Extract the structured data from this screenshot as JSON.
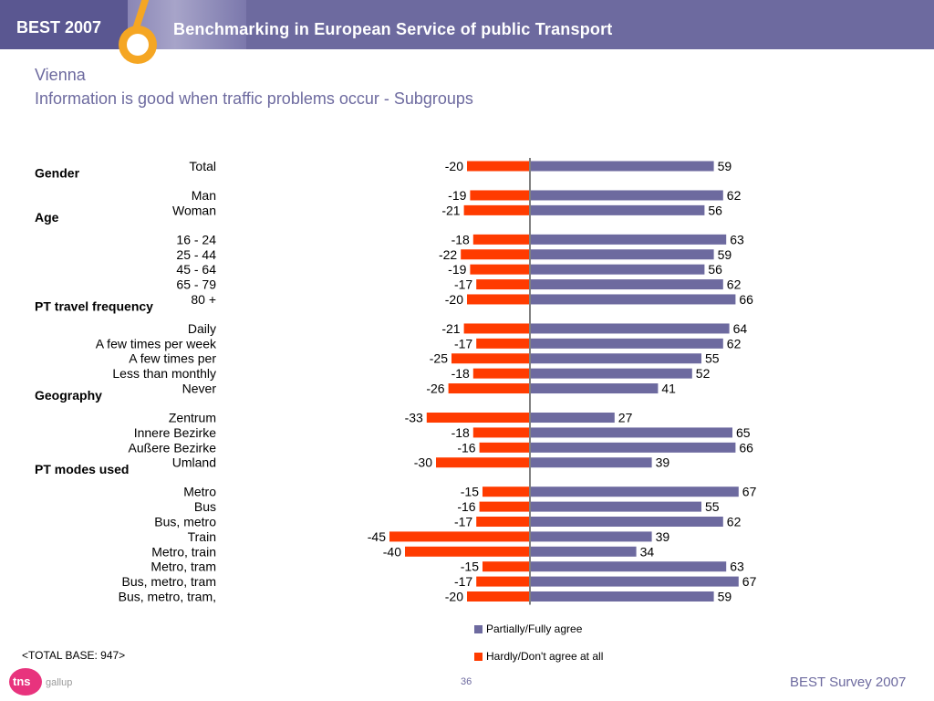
{
  "header": {
    "brand": "BEST 2007",
    "subtitle": "Benchmarking in European Service of public Transport"
  },
  "slide": {
    "title": "Vienna",
    "subtitle": "Information is good when traffic problems occur - Subgroups"
  },
  "chart_data": {
    "type": "bar",
    "orientation": "horizontal diverging",
    "groups": [
      {
        "name": "",
        "rows": [
          {
            "label": "Total",
            "negative": -20,
            "positive": 59
          }
        ]
      },
      {
        "name": "Gender",
        "rows": [
          {
            "label": "Man",
            "negative": -19,
            "positive": 62
          },
          {
            "label": "Woman",
            "negative": -21,
            "positive": 56
          }
        ]
      },
      {
        "name": "Age",
        "rows": [
          {
            "label": "16 - 24",
            "negative": -18,
            "positive": 63
          },
          {
            "label": "25 - 44",
            "negative": -22,
            "positive": 59
          },
          {
            "label": "45 - 64",
            "negative": -19,
            "positive": 56
          },
          {
            "label": "65 - 79",
            "negative": -17,
            "positive": 62
          },
          {
            "label": "80 +",
            "negative": -20,
            "positive": 66
          }
        ]
      },
      {
        "name": "PT travel frequency",
        "rows": [
          {
            "label": "Daily",
            "negative": -21,
            "positive": 64
          },
          {
            "label": "A few times per week",
            "negative": -17,
            "positive": 62
          },
          {
            "label": "A few times per",
            "negative": -25,
            "positive": 55
          },
          {
            "label": "Less than monthly",
            "negative": -18,
            "positive": 52
          },
          {
            "label": "Never",
            "negative": -26,
            "positive": 41
          }
        ]
      },
      {
        "name": "Geography",
        "rows": [
          {
            "label": "Zentrum",
            "negative": -33,
            "positive": 27
          },
          {
            "label": "Innere Bezirke",
            "negative": -18,
            "positive": 65
          },
          {
            "label": "Außere Bezirke",
            "negative": -16,
            "positive": 66
          },
          {
            "label": "Umland",
            "negative": -30,
            "positive": 39
          }
        ]
      },
      {
        "name": "PT modes used",
        "rows": [
          {
            "label": "Metro",
            "negative": -15,
            "positive": 67
          },
          {
            "label": "Bus",
            "negative": -16,
            "positive": 55
          },
          {
            "label": "Bus, metro",
            "negative": -17,
            "positive": 62
          },
          {
            "label": "Train",
            "negative": -45,
            "positive": 39
          },
          {
            "label": "Metro, train",
            "negative": -40,
            "positive": 34
          },
          {
            "label": "Metro, tram",
            "negative": -15,
            "positive": 63
          },
          {
            "label": "Bus, metro, tram",
            "negative": -17,
            "positive": 67
          },
          {
            "label": "Bus, metro, tram,",
            "negative": -20,
            "positive": 59
          }
        ]
      }
    ],
    "series": [
      {
        "key": "positive",
        "name": "Partially/Fully agree",
        "color": "#6d6a9f"
      },
      {
        "key": "negative",
        "name": "Hardly/Don't agree at all",
        "color": "#ff3b00"
      }
    ],
    "legend_position": "bottom-center",
    "grid": false
  },
  "footer": {
    "base_note": "<TOTAL BASE: 947>",
    "logo_text": "tns",
    "logo_subtext": "gallup",
    "page_number": "36",
    "right_text": "BEST Survey 2007"
  }
}
